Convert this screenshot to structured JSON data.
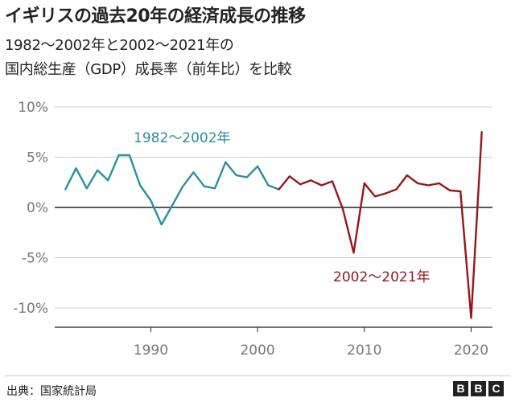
{
  "header": {
    "title": "イギリスの過去20年の経済成長の推移",
    "subtitle_line1": "1982～2002年と2002～2021年の",
    "subtitle_line2": "国内総生産（GDP）成長率（前年比）を比較"
  },
  "footer": {
    "source": "出典：国家統計局",
    "logo": [
      "B",
      "B",
      "C"
    ]
  },
  "colors": {
    "series1": "#2a8ea1",
    "series2": "#99151b",
    "grid": "#cccccc",
    "zero_line": "#222222",
    "axis_text": "#777777"
  },
  "chart_data": {
    "type": "line",
    "title": "イギリスの過去20年の経済成長の推移",
    "xlabel": "",
    "ylabel": "",
    "xlim": [
      1981,
      2022
    ],
    "ylim": [
      -12,
      10
    ],
    "yticks": [
      10,
      5,
      0,
      -5,
      -10
    ],
    "ytick_labels": [
      "10%",
      "5%",
      "0%",
      "-5%",
      "-10%"
    ],
    "xticks": [
      1990,
      2000,
      2010,
      2020
    ],
    "xtick_labels": [
      "1990",
      "2000",
      "2010",
      "2020"
    ],
    "grid": true,
    "series": [
      {
        "name": "1982～2002年",
        "x": [
          1982,
          1983,
          1984,
          1985,
          1986,
          1987,
          1988,
          1989,
          1990,
          1991,
          1992,
          1993,
          1994,
          1995,
          1996,
          1997,
          1998,
          1999,
          2000,
          2001,
          2002
        ],
        "values": [
          1.8,
          3.9,
          1.9,
          3.7,
          2.7,
          5.2,
          5.2,
          2.2,
          0.7,
          -1.7,
          0.2,
          2.1,
          3.5,
          2.1,
          1.9,
          4.5,
          3.2,
          3.0,
          4.1,
          2.2,
          1.8
        ]
      },
      {
        "name": "2002～2021年",
        "x": [
          2002,
          2003,
          2004,
          2005,
          2006,
          2007,
          2008,
          2009,
          2010,
          2011,
          2012,
          2013,
          2014,
          2015,
          2016,
          2017,
          2018,
          2019,
          2020,
          2021
        ],
        "values": [
          1.8,
          3.1,
          2.3,
          2.7,
          2.2,
          2.6,
          -0.2,
          -4.5,
          2.4,
          1.1,
          1.4,
          1.8,
          3.2,
          2.4,
          2.2,
          2.4,
          1.7,
          1.6,
          -11.0,
          7.5
        ]
      }
    ],
    "annotations": [
      {
        "text": "1982～2002年",
        "series": 0
      },
      {
        "text": "2002～2021年",
        "series": 1
      }
    ]
  }
}
